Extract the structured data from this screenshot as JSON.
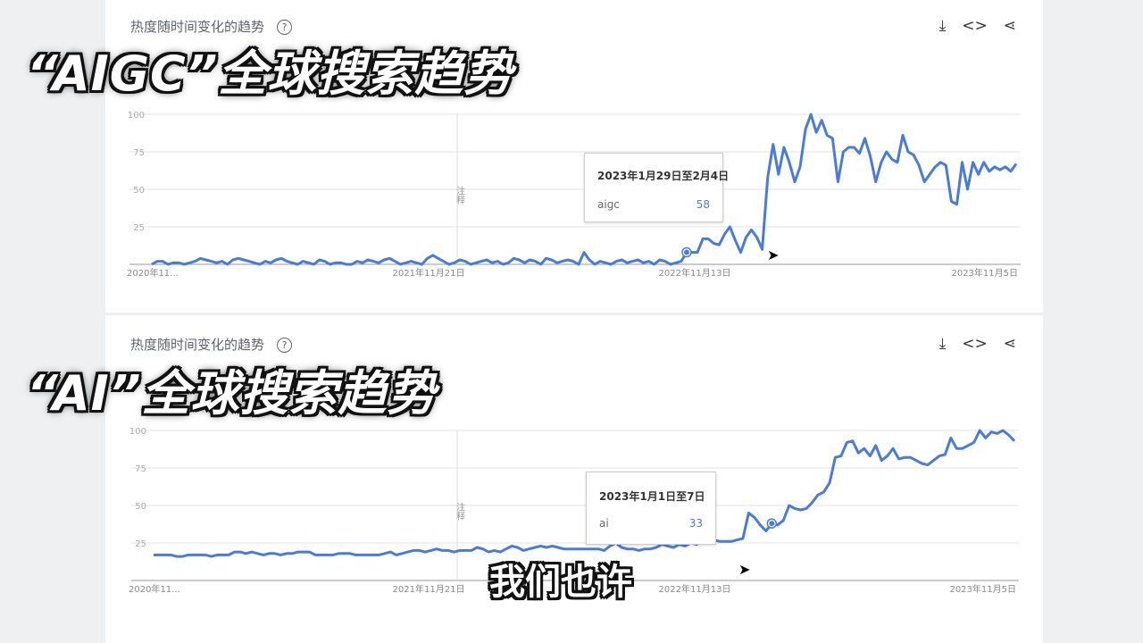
{
  "card_title": "热度随时间变化的趋势",
  "help_icon": "?",
  "tools": {
    "download": "⤓",
    "embed": "<>",
    "share": "⋖"
  },
  "captions": {
    "aigc": "“AIGC”全球搜索趋势",
    "ai": "“AI”全球搜索趋势"
  },
  "subtitle": "我们也许",
  "line_color": "#4a7bd6",
  "chart_data": [
    {
      "type": "line",
      "name_term": "aigc",
      "ylim": [
        0,
        100
      ],
      "yticks": [
        25,
        50,
        75,
        100
      ],
      "xtick_labels": [
        "2020年11...",
        "2021年11月21日",
        "2022年11月13日",
        "2023年11月5日"
      ],
      "annotation": "注释",
      "tooltip": {
        "date": "2023年1月29日至2月4日",
        "term": "aigc",
        "value": "58"
      },
      "values": [
        0,
        2,
        2,
        0,
        1,
        1,
        0,
        1,
        2,
        4,
        3,
        2,
        1,
        2,
        0,
        3,
        4,
        3,
        2,
        1,
        0,
        2,
        1,
        3,
        4,
        2,
        1,
        0,
        2,
        1,
        0,
        3,
        2,
        0,
        1,
        1,
        0,
        0,
        2,
        1,
        3,
        2,
        1,
        3,
        4,
        2,
        0,
        1,
        2,
        1,
        0,
        4,
        6,
        4,
        2,
        0,
        1,
        3,
        2,
        0,
        1,
        2,
        3,
        1,
        2,
        0,
        1,
        4,
        3,
        1,
        3,
        2,
        0,
        4,
        3,
        1,
        2,
        3,
        2,
        0,
        8,
        3,
        0,
        2,
        1,
        0,
        2,
        3,
        1,
        2,
        3,
        1,
        2,
        0,
        3,
        2,
        0,
        1,
        2,
        8,
        8,
        8,
        17,
        17,
        14,
        13,
        20,
        25,
        16,
        8,
        18,
        23,
        18,
        10,
        58,
        80,
        60,
        78,
        68,
        55,
        65,
        90,
        100,
        88,
        96,
        86,
        84,
        55,
        75,
        78,
        78,
        74,
        84,
        72,
        55,
        68,
        75,
        70,
        68,
        86,
        75,
        73,
        66,
        55,
        60,
        65,
        68,
        66,
        42,
        40,
        68,
        50,
        68,
        60,
        68,
        62,
        65,
        63,
        65,
        62,
        67
      ]
    },
    {
      "type": "line",
      "name_term": "ai",
      "ylim": [
        0,
        100
      ],
      "yticks": [
        25,
        50,
        75,
        100
      ],
      "xtick_labels": [
        "2020年11...",
        "2021年11月21日",
        "2022年11月13日",
        "2023年11月5日"
      ],
      "annotation": "注释",
      "tooltip": {
        "date": "2023年1月1日至7日",
        "term": "ai",
        "value": "33"
      },
      "values": [
        17,
        17,
        17,
        17,
        16,
        16,
        17,
        17,
        17,
        17,
        16,
        17,
        17,
        17,
        19,
        19,
        18,
        19,
        18,
        17,
        18,
        18,
        17,
        18,
        18,
        19,
        19,
        19,
        17,
        17,
        17,
        17,
        18,
        18,
        18,
        17,
        17,
        17,
        17,
        17,
        18,
        19,
        17,
        18,
        19,
        20,
        20,
        19,
        20,
        21,
        20,
        20,
        19,
        20,
        20,
        20,
        22,
        21,
        19,
        20,
        19,
        21,
        23,
        22,
        20,
        21,
        22,
        23,
        22,
        23,
        22,
        21,
        21,
        21,
        21,
        21,
        21,
        21,
        20,
        23,
        25,
        22,
        21,
        21,
        20,
        21,
        21,
        22,
        24,
        23,
        22,
        24,
        23,
        25,
        24,
        27,
        26,
        27,
        26,
        26,
        26,
        27,
        28,
        45,
        42,
        37,
        33,
        38,
        37,
        40,
        50,
        48,
        47,
        48,
        52,
        57,
        59,
        65,
        82,
        83,
        92,
        93,
        85,
        88,
        83,
        90,
        80,
        83,
        88,
        81,
        82,
        82,
        80,
        78,
        77,
        80,
        83,
        84,
        95,
        88,
        88,
        90,
        92,
        100,
        95,
        99,
        98,
        100,
        97,
        93
      ]
    }
  ]
}
